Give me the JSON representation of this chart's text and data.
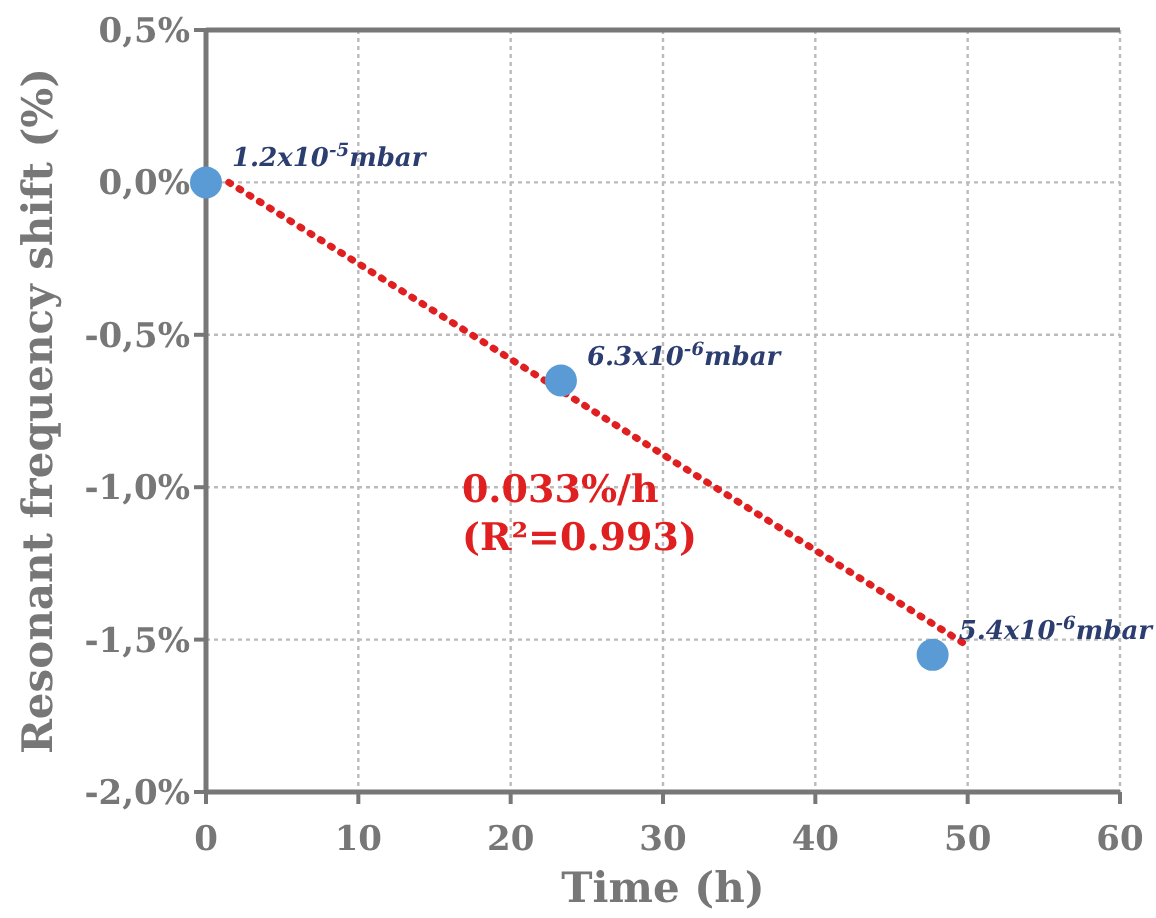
{
  "chart_data": {
    "type": "scatter",
    "xlabel": "Time (h)",
    "ylabel": "Resonant frequency shift (%)",
    "xlim": [
      0,
      60
    ],
    "xticks": [
      0,
      10,
      20,
      30,
      40,
      50,
      60
    ],
    "ylim": [
      -2.0,
      0.5
    ],
    "yticks": [
      {
        "value": 0.5,
        "label": "0,5%"
      },
      {
        "value": 0,
        "label": "0,0%"
      },
      {
        "value": -0.5,
        "label": "-0,5%"
      },
      {
        "value": -1.0,
        "label": "-1,0%"
      },
      {
        "value": -1.5,
        "label": "-1,5%"
      },
      {
        "value": -2.0,
        "label": "-2,0%"
      }
    ],
    "grid": true,
    "marker": "circle",
    "series": [
      {
        "color": "#5b9bd5",
        "x": [
          0,
          23.3,
          47.7
        ],
        "values": [
          0,
          -0.65,
          -1.55
        ]
      },
      {
        "type": "line",
        "color": "#e02020",
        "line_style": "dotted",
        "marker": "none",
        "x": [
          1.5,
          50
        ],
        "values": [
          0,
          -1.52
        ]
      }
    ],
    "annotations": [
      {
        "text": "1.2x10$^{-5}$mbar",
        "x": 0,
        "y": 0
      },
      {
        "text": "6.3x10$^{-6}$mbar",
        "x": 23.3,
        "y": -0.65
      },
      {
        "text": "5.4x10$^{-6}$mbar",
        "x": 47.7,
        "y": -1.55
      },
      "0.033%/h\n(R²=0.993)"
    ]
  }
}
